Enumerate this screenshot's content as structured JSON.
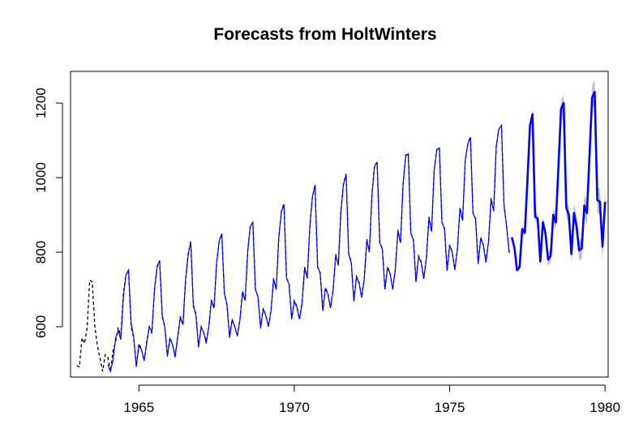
{
  "chart_data": {
    "type": "line",
    "title": "Forecasts from HoltWinters",
    "xlabel": "",
    "ylabel": "",
    "xlim": [
      1962.8,
      1980.1
    ],
    "ylim": [
      465,
      1285
    ],
    "x_ticks": [
      1965,
      1970,
      1975,
      1980
    ],
    "x_tick_labels": [
      "1965",
      "1970",
      "1975",
      "1980"
    ],
    "y_ticks": [
      600,
      800,
      1000,
      1200
    ],
    "y_tick_labels": [
      "600",
      "800",
      "1000",
      "1200"
    ],
    "grid": false,
    "legend": "none",
    "colors": {
      "observed": "#000000",
      "fitted": "#0000ff",
      "forecast": "#0000ff",
      "interval": "#bfbfd9"
    },
    "series": [
      {
        "role": "observed",
        "style": "dashed",
        "start": 1963.0,
        "frequency": 12,
        "values": [
          496,
          492,
          570,
          555,
          595,
          725,
          720,
          600,
          548,
          515,
          480,
          525,
          518,
          480,
          535,
          560,
          598,
          575,
          690,
          738,
          752,
          600,
          570,
          495,
          555,
          540,
          508,
          560,
          600,
          582,
          700,
          760,
          775,
          625,
          600,
          525,
          570,
          552,
          520,
          575,
          628,
          605,
          725,
          795,
          830,
          655,
          635,
          545,
          600,
          585,
          560,
          600,
          672,
          650,
          770,
          830,
          848,
          688,
          658,
          575,
          620,
          600,
          575,
          620,
          695,
          672,
          800,
          870,
          880,
          700,
          680,
          598,
          650,
          630,
          600,
          645,
          730,
          700,
          840,
          910,
          930,
          730,
          715,
          620,
          670,
          655,
          620,
          665,
          760,
          730,
          870,
          950,
          980,
          760,
          745,
          645,
          705,
          690,
          650,
          700,
          795,
          765,
          910,
          985,
          1010,
          795,
          775,
          670,
          735,
          720,
          680,
          730,
          835,
          800,
          955,
          1035,
          1040,
          825,
          810,
          700,
          760,
          745,
          700,
          755,
          860,
          825,
          985,
          1060,
          1065,
          850,
          835,
          720,
          790,
          775,
          730,
          785,
          895,
          855,
          1020,
          1075,
          1080,
          880,
          865,
          750,
          820,
          800,
          755,
          810,
          920,
          885,
          1045,
          1090,
          1110,
          905,
          890,
          770,
          840,
          820,
          775,
          830,
          945,
          910,
          1085,
          1130,
          1140,
          925,
          870,
          800
        ]
      },
      {
        "role": "fitted",
        "style": "solid",
        "start": 1964.0,
        "frequency": 12,
        "values": [
          498,
          480,
          510,
          570,
          590,
          565,
          680,
          738,
          752,
          610,
          572,
          492,
          550,
          538,
          510,
          555,
          600,
          585,
          698,
          762,
          778,
          630,
          600,
          520,
          568,
          552,
          518,
          572,
          625,
          605,
          722,
          792,
          828,
          660,
          630,
          545,
          598,
          585,
          555,
          600,
          670,
          650,
          770,
          830,
          850,
          690,
          660,
          570,
          618,
          600,
          575,
          618,
          692,
          670,
          800,
          868,
          880,
          700,
          680,
          595,
          648,
          630,
          600,
          642,
          728,
          700,
          838,
          908,
          928,
          732,
          712,
          620,
          668,
          652,
          620,
          662,
          758,
          730,
          868,
          948,
          980,
          762,
          742,
          642,
          702,
          688,
          650,
          698,
          792,
          765,
          908,
          982,
          1008,
          795,
          772,
          668,
          732,
          718,
          678,
          728,
          832,
          800,
          952,
          1030,
          1040,
          826,
          808,
          700,
          758,
          742,
          700,
          752,
          858,
          825,
          982,
          1058,
          1064,
          852,
          832,
          720,
          788,
          772,
          728,
          782,
          892,
          855,
          1018,
          1074,
          1080,
          880,
          862,
          750,
          818,
          800,
          752,
          808,
          918,
          885,
          1045,
          1090,
          1108,
          905,
          888,
          768,
          838,
          818,
          772,
          828,
          942,
          910,
          1085,
          1130,
          1140,
          925,
          868,
          798
        ]
      },
      {
        "role": "forecast",
        "style": "solid-thick",
        "start": 1977.0,
        "frequency": 12,
        "values": [
          840,
          812,
          752,
          760,
          862,
          852,
          990,
          1140,
          1170,
          895,
          890,
          775,
          880,
          850,
          780,
          790,
          900,
          880,
          1030,
          1185,
          1200,
          920,
          900,
          795,
          905,
          870,
          805,
          810,
          925,
          905,
          1060,
          1215,
          1230,
          940,
          935,
          815,
          935
        ]
      }
    ]
  }
}
